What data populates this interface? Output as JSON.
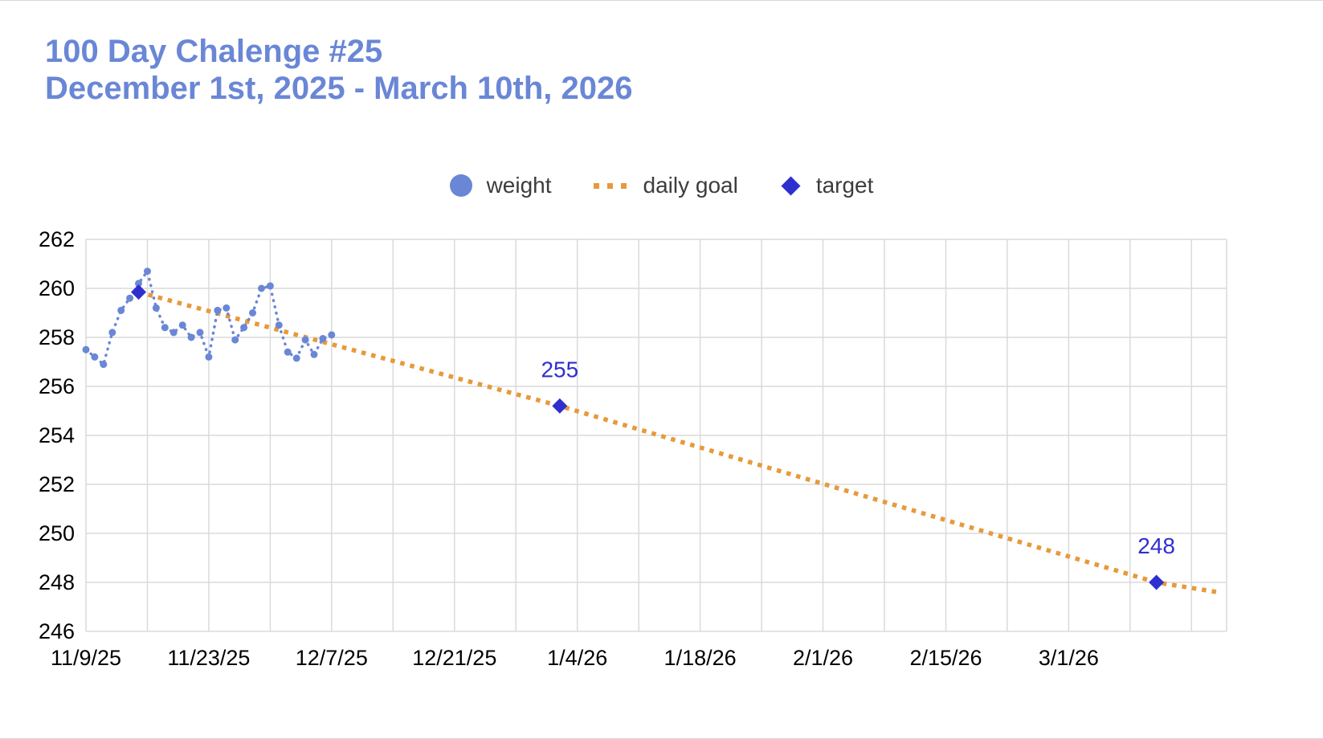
{
  "page": {
    "title_line1": "100 Day Chalenge #25",
    "title_line2": "December 1st, 2025 - March 10th, 2026",
    "title_color": "#6a87d6"
  },
  "legend": [
    {
      "label": "weight",
      "type": "circle",
      "color": "#6a87d6"
    },
    {
      "label": "daily goal",
      "type": "dotted-line",
      "color": "#e69a3b"
    },
    {
      "label": "target",
      "type": "diamond",
      "color": "#2f2fd0"
    }
  ],
  "chart_data": {
    "type": "line",
    "title": "100 Day Chalenge #25 — December 1st, 2025 - March 10th, 2026",
    "xlabel": "",
    "ylabel": "",
    "grid": true,
    "legend_position": "top-center",
    "x_axis": {
      "type": "date",
      "day0_date": "11/9/25",
      "range_days": [
        0,
        130
      ],
      "tick_days": [
        0,
        14,
        28,
        42,
        56,
        70,
        84,
        98,
        112
      ],
      "tick_labels": [
        "11/9/25",
        "11/23/25",
        "12/7/25",
        "12/21/25",
        "1/4/26",
        "1/18/26",
        "2/1/26",
        "2/15/26",
        "3/1/26"
      ],
      "minor_grid_every_days": 7
    },
    "y_axis": {
      "range": [
        246,
        262
      ],
      "ticks": [
        246,
        248,
        250,
        252,
        254,
        256,
        258,
        260,
        262
      ]
    },
    "series": [
      {
        "name": "weight",
        "type": "dotted-line-with-points",
        "color": "#6a87d6",
        "points": [
          [
            0,
            257.5
          ],
          [
            1,
            257.2
          ],
          [
            2,
            256.9
          ],
          [
            3,
            258.2
          ],
          [
            4,
            259.1
          ],
          [
            5,
            259.6
          ],
          [
            6,
            260.2
          ],
          [
            7,
            260.7
          ],
          [
            8,
            259.2
          ],
          [
            9,
            258.4
          ],
          [
            10,
            258.2
          ],
          [
            11,
            258.5
          ],
          [
            12,
            258.0
          ],
          [
            13,
            258.2
          ],
          [
            14,
            257.2
          ],
          [
            15,
            259.1
          ],
          [
            16,
            259.2
          ],
          [
            17,
            257.9
          ],
          [
            18,
            258.4
          ],
          [
            19,
            259.0
          ],
          [
            20,
            260.0
          ],
          [
            21,
            260.1
          ],
          [
            22,
            258.5
          ],
          [
            23,
            257.4
          ],
          [
            24,
            257.15
          ],
          [
            25,
            257.9
          ],
          [
            26,
            257.3
          ],
          [
            27,
            257.95
          ],
          [
            28,
            258.1
          ]
        ]
      },
      {
        "name": "daily goal",
        "type": "dotted-line",
        "color": "#e69a3b",
        "points": [
          [
            6,
            259.85
          ],
          [
            54,
            255.2
          ],
          [
            122,
            248.0
          ],
          [
            129,
            247.6
          ]
        ]
      },
      {
        "name": "target",
        "type": "diamond-markers",
        "color": "#2f2fd0",
        "points": [
          [
            6,
            259.85
          ],
          [
            54,
            255.2
          ],
          [
            122,
            248.0
          ]
        ],
        "point_labels": [
          "",
          "255",
          "248"
        ]
      }
    ]
  }
}
